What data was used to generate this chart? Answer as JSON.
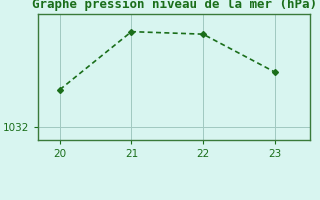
{
  "x": [
    20,
    21,
    22,
    23
  ],
  "y": [
    1033.5,
    1035.8,
    1035.7,
    1034.2
  ],
  "line_color": "#1a6e1a",
  "marker": "D",
  "marker_size": 3,
  "line_width": 1.2,
  "background_color": "#d8f5f0",
  "grid_color": "#a0c8c0",
  "title": "Graphe pression niveau de la mer (hPa)",
  "title_color": "#1a6e1a",
  "title_fontsize": 9,
  "xlabel": "",
  "ylabel": "",
  "xlim": [
    19.7,
    23.5
  ],
  "ylim": [
    1031.5,
    1036.5
  ],
  "xticks": [
    20,
    21,
    22,
    23
  ],
  "yticks": [
    1032
  ],
  "tick_fontsize": 7.5,
  "spine_color": "#3a7a3a",
  "axis_bg": "#d8f5f0"
}
